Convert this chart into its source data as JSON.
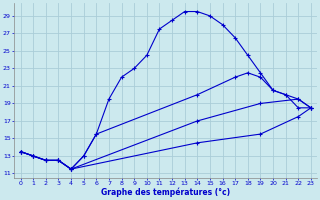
{
  "xlabel": "Graphe des températures (°c)",
  "bg_color": "#cce9ee",
  "grid_color": "#aacdd8",
  "line_color": "#0000cc",
  "xlim": [
    -0.5,
    23.5
  ],
  "ylim": [
    10.5,
    30.5
  ],
  "yticks": [
    11,
    13,
    15,
    17,
    19,
    21,
    23,
    25,
    27,
    29
  ],
  "xticks": [
    0,
    1,
    2,
    3,
    4,
    5,
    6,
    7,
    8,
    9,
    10,
    11,
    12,
    13,
    14,
    15,
    16,
    17,
    18,
    19,
    20,
    21,
    22,
    23
  ],
  "line1_x": [
    0,
    1,
    2,
    3,
    4,
    5,
    6,
    7,
    8,
    9,
    10,
    11,
    12,
    13,
    14,
    15,
    16,
    17,
    18,
    19,
    20,
    21,
    22,
    23
  ],
  "line1_y": [
    13.5,
    13.0,
    12.5,
    12.5,
    11.5,
    13.0,
    15.5,
    19.5,
    22.0,
    23.0,
    24.5,
    27.5,
    28.5,
    29.5,
    29.5,
    29.0,
    28.0,
    26.5,
    24.5,
    22.5,
    20.5,
    20.0,
    18.5,
    18.5
  ],
  "line2_x": [
    0,
    1,
    2,
    3,
    4,
    5,
    6,
    14,
    17,
    18,
    19,
    20,
    21,
    22,
    23
  ],
  "line2_y": [
    13.5,
    13.0,
    12.5,
    12.5,
    11.5,
    13.0,
    15.5,
    20.0,
    22.0,
    22.5,
    22.0,
    20.5,
    20.0,
    19.5,
    18.5
  ],
  "line3_x": [
    0,
    1,
    2,
    3,
    4,
    14,
    19,
    22,
    23
  ],
  "line3_y": [
    13.5,
    13.0,
    12.5,
    12.5,
    11.5,
    17.0,
    19.0,
    19.5,
    18.5
  ],
  "line4_x": [
    0,
    1,
    2,
    3,
    4,
    14,
    19,
    22,
    23
  ],
  "line4_y": [
    13.5,
    13.0,
    12.5,
    12.5,
    11.5,
    14.5,
    15.5,
    17.5,
    18.5
  ]
}
